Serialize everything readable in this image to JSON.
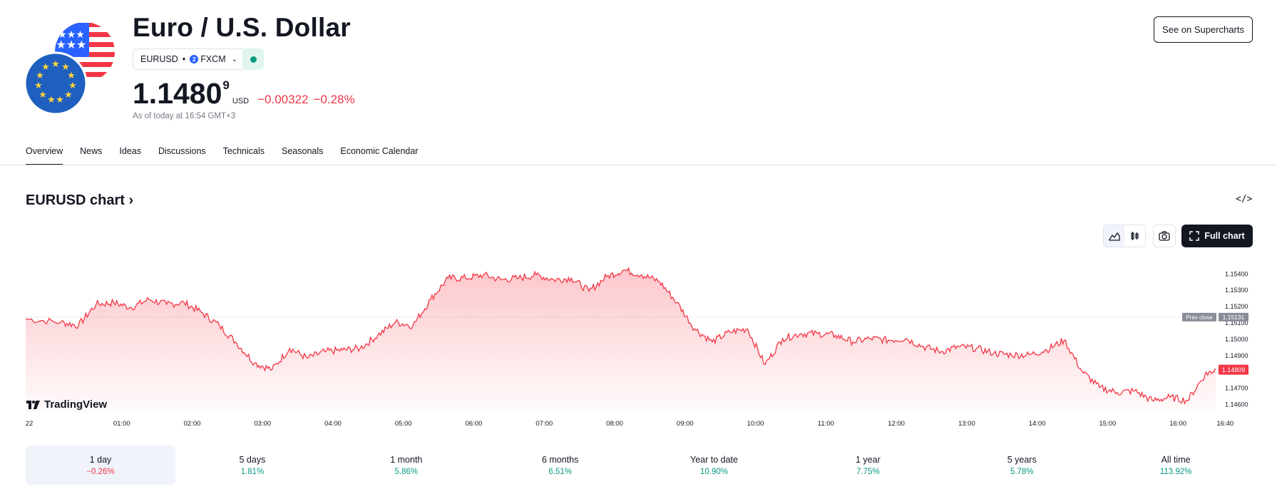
{
  "header": {
    "title": "Euro / U.S. Dollar",
    "symbol": "EURUSD",
    "exchange": "FXCM",
    "exchange_badge": "2",
    "price_main": "1.1480",
    "price_sup": "9",
    "currency": "USD",
    "change": "−0.00322",
    "change_pct": "−0.28%",
    "as_of": "As of today at 16:54 GMT+3",
    "supercharts_label": "See on Supercharts",
    "market_status_color": "#089981"
  },
  "tabs": [
    {
      "label": "Overview",
      "active": true
    },
    {
      "label": "News"
    },
    {
      "label": "Ideas"
    },
    {
      "label": "Discussions"
    },
    {
      "label": "Technicals"
    },
    {
      "label": "Seasonals"
    },
    {
      "label": "Economic Calendar"
    }
  ],
  "chart_section": {
    "title": "EURUSD chart ›",
    "embed_icon": "code-icon",
    "fullchart_label": "Full chart",
    "logo_text": "TradingView"
  },
  "chart_data": {
    "type": "area",
    "series_color": "#f23645",
    "prev_close": 1.15131,
    "prev_close_label": "Prev close",
    "prev_close_value": "1.15131",
    "last_value": 1.14809,
    "last_value_label": "1.14809",
    "ylim": [
      1.1455,
      1.1548
    ],
    "y_ticks": [
      "1.15400",
      "1.15300",
      "1.15200",
      "1.15100",
      "1.15000",
      "1.14900",
      "1.14800",
      "1.14700",
      "1.14600"
    ],
    "x_ticks": [
      "22",
      "01:00",
      "02:00",
      "03:00",
      "04:00",
      "05:00",
      "06:00",
      "07:00",
      "08:00",
      "09:00",
      "10:00",
      "11:00",
      "12:00",
      "13:00",
      "14:00",
      "15:00",
      "16:00",
      "16:40"
    ],
    "x_hours": [
      0,
      0.5,
      0.75,
      1,
      1.25,
      1.5,
      1.75,
      2,
      2.25,
      2.5,
      2.75,
      3,
      3.25,
      3.5,
      3.75,
      4,
      4.25,
      4.5,
      4.75,
      5,
      5.25,
      5.5,
      5.75,
      6,
      6.25,
      6.5,
      6.75,
      7,
      7.25,
      7.5,
      7.75,
      8,
      8.25,
      8.5,
      8.75,
      9,
      9.25,
      9.5,
      9.75,
      10,
      10.25,
      10.5,
      10.75,
      11,
      11.25,
      11.5,
      11.75,
      12,
      12.25,
      12.5,
      12.75,
      13,
      13.25,
      13.5,
      13.75,
      14,
      14.25,
      14.5,
      14.75,
      15,
      15.25,
      15.5,
      15.75,
      16,
      16.25,
      16.5,
      16.75,
      16.9
    ],
    "y_values": [
      1.1512,
      1.151,
      1.1508,
      1.1521,
      1.1522,
      1.1519,
      1.1524,
      1.1521,
      1.1522,
      1.1516,
      1.1508,
      1.1497,
      1.1485,
      1.1481,
      1.1494,
      1.1488,
      1.1492,
      1.1493,
      1.1494,
      1.1502,
      1.151,
      1.1508,
      1.1524,
      1.1537,
      1.1537,
      1.1539,
      1.1536,
      1.1537,
      1.1539,
      1.1536,
      1.1537,
      1.1529,
      1.1538,
      1.1542,
      1.1539,
      1.1535,
      1.1522,
      1.1506,
      1.1498,
      1.1504,
      1.1506,
      1.1484,
      1.15,
      1.1503,
      1.1503,
      1.1502,
      1.1498,
      1.15,
      1.1499,
      1.15,
      1.1495,
      1.1492,
      1.1495,
      1.1494,
      1.1491,
      1.149,
      1.149,
      1.1493,
      1.1499,
      1.148,
      1.147,
      1.1467,
      1.1468,
      1.1462,
      1.1464,
      1.1462,
      1.1478,
      1.1481
    ]
  },
  "periods": [
    {
      "label": "1 day",
      "value": "−0.26%",
      "dir": "down",
      "active": true
    },
    {
      "label": "5 days",
      "value": "1.81%",
      "dir": "up"
    },
    {
      "label": "1 month",
      "value": "5.86%",
      "dir": "up"
    },
    {
      "label": "6 months",
      "value": "6.51%",
      "dir": "up"
    },
    {
      "label": "Year to date",
      "value": "10.90%",
      "dir": "up"
    },
    {
      "label": "1 year",
      "value": "7.75%",
      "dir": "up"
    },
    {
      "label": "5 years",
      "value": "5.78%",
      "dir": "up"
    },
    {
      "label": "All time",
      "value": "113.92%",
      "dir": "up"
    }
  ]
}
